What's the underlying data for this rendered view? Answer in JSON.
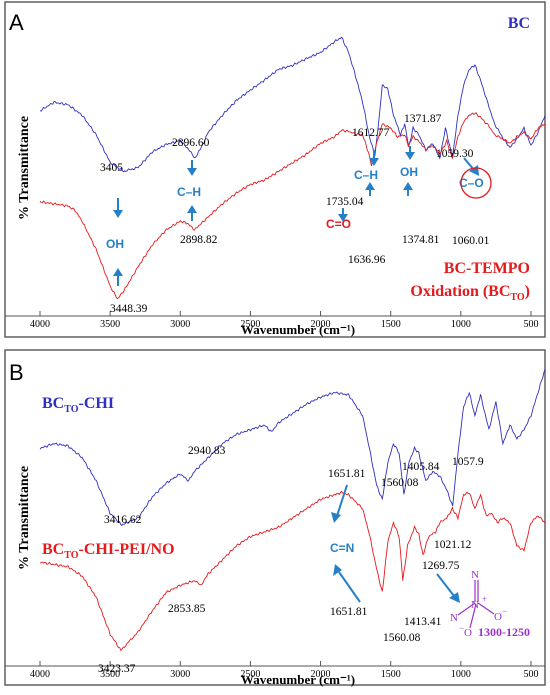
{
  "chart_data": [
    {
      "panel": "A",
      "type": "line",
      "xlabel": "Wavenumber (cm⁻¹)",
      "ylabel": "% Transmittance",
      "xlim": [
        4000,
        400
      ],
      "xticks": [
        4000,
        3500,
        3000,
        2500,
        2000,
        1500,
        1000,
        500
      ],
      "series": [
        {
          "name": "BC",
          "color": "#3030c0",
          "points": [
            [
              4000,
              0.58
            ],
            [
              3900,
              0.62
            ],
            [
              3800,
              0.608
            ],
            [
              3700,
              0.56
            ],
            [
              3600,
              0.47
            ],
            [
              3500,
              0.342
            ],
            [
              3405,
              0.3
            ],
            [
              3300,
              0.318
            ],
            [
              3200,
              0.39
            ],
            [
              3100,
              0.425
            ],
            [
              3000,
              0.442
            ],
            [
              2950,
              0.41
            ],
            [
              2896.6,
              0.362
            ],
            [
              2850,
              0.41
            ],
            [
              2800,
              0.482
            ],
            [
              2700,
              0.56
            ],
            [
              2600,
              0.628
            ],
            [
              2500,
              0.676
            ],
            [
              2400,
              0.722
            ],
            [
              2300,
              0.772
            ],
            [
              2200,
              0.79
            ],
            [
              2100,
              0.822
            ],
            [
              2000,
              0.85
            ],
            [
              1900,
              0.9
            ],
            [
              1850,
              0.92
            ],
            [
              1800,
              0.85
            ],
            [
              1750,
              0.74
            ],
            [
              1700,
              0.62
            ],
            [
              1650,
              0.455
            ],
            [
              1612.77,
              0.372
            ],
            [
              1580,
              0.56
            ],
            [
              1560,
              0.7
            ],
            [
              1520,
              0.68
            ],
            [
              1480,
              0.56
            ],
            [
              1430,
              0.47
            ],
            [
              1400,
              0.52
            ],
            [
              1371.87,
              0.412
            ],
            [
              1340,
              0.5
            ],
            [
              1300,
              0.47
            ],
            [
              1250,
              0.4
            ],
            [
              1200,
              0.43
            ],
            [
              1150,
              0.36
            ],
            [
              1110,
              0.5
            ],
            [
              1059.3,
              0.365
            ],
            [
              1020,
              0.56
            ],
            [
              980,
              0.7
            ],
            [
              940,
              0.772
            ],
            [
              900,
              0.792
            ],
            [
              860,
              0.722
            ],
            [
              800,
              0.6
            ],
            [
              760,
              0.52
            ],
            [
              700,
              0.455
            ],
            [
              650,
              0.41
            ],
            [
              600,
              0.45
            ],
            [
              550,
              0.5
            ],
            [
              500,
              0.42
            ],
            [
              450,
              0.48
            ],
            [
              400,
              0.56
            ]
          ]
        },
        {
          "name": "BC-TEMPO Oxidation (BC",
          "name_sub": "TO",
          "name_end": ")",
          "color": "#e41a1c",
          "points": [
            [
              4000,
              0.16
            ],
            [
              3900,
              0.15
            ],
            [
              3800,
              0.14
            ],
            [
              3750,
              0.12
            ],
            [
              3700,
              0.07
            ],
            [
              3600,
              -0.06
            ],
            [
              3500,
              -0.23
            ],
            [
              3448.39,
              -0.29
            ],
            [
              3400,
              -0.25
            ],
            [
              3300,
              -0.14
            ],
            [
              3200,
              -0.04
            ],
            [
              3100,
              0.03
            ],
            [
              3000,
              0.07
            ],
            [
              2950,
              0.06
            ],
            [
              2898.82,
              0.03
            ],
            [
              2850,
              0.06
            ],
            [
              2800,
              0.09
            ],
            [
              2700,
              0.15
            ],
            [
              2600,
              0.2
            ],
            [
              2500,
              0.24
            ],
            [
              2400,
              0.26
            ],
            [
              2300,
              0.3
            ],
            [
              2200,
              0.34
            ],
            [
              2100,
              0.38
            ],
            [
              2000,
              0.43
            ],
            [
              1900,
              0.46
            ],
            [
              1850,
              0.49
            ],
            [
              1800,
              0.485
            ],
            [
              1735.04,
              0.47
            ],
            [
              1700,
              0.47
            ],
            [
              1660,
              0.39
            ],
            [
              1636.96,
              0.33
            ],
            [
              1600,
              0.43
            ],
            [
              1560,
              0.52
            ],
            [
              1500,
              0.5
            ],
            [
              1450,
              0.46
            ],
            [
              1400,
              0.47
            ],
            [
              1374.81,
              0.42
            ],
            [
              1340,
              0.46
            ],
            [
              1300,
              0.44
            ],
            [
              1250,
              0.4
            ],
            [
              1200,
              0.42
            ],
            [
              1150,
              0.38
            ],
            [
              1100,
              0.44
            ],
            [
              1060.01,
              0.36
            ],
            [
              1020,
              0.46
            ],
            [
              980,
              0.53
            ],
            [
              940,
              0.56
            ],
            [
              900,
              0.57
            ],
            [
              860,
              0.55
            ],
            [
              800,
              0.51
            ],
            [
              760,
              0.47
            ],
            [
              700,
              0.45
            ],
            [
              650,
              0.43
            ],
            [
              600,
              0.46
            ],
            [
              550,
              0.48
            ],
            [
              500,
              0.45
            ],
            [
              450,
              0.5
            ],
            [
              400,
              0.52
            ]
          ]
        }
      ],
      "peak_labels": [
        "3405",
        "2896.60",
        "1612.77",
        "1371.87",
        "1059.30",
        "3448.39",
        "2898.82",
        "1735.04",
        "1636.96",
        "1374.81",
        "1060.01"
      ],
      "group_labels": [
        "OH",
        "C–H",
        "C–H",
        "OH",
        "C–O",
        "C=O"
      ]
    },
    {
      "panel": "B",
      "type": "line",
      "xlabel": "Wavenumber (cm⁻¹)",
      "ylabel": "% Transmittance",
      "xlim": [
        4000,
        400
      ],
      "xticks": [
        4000,
        3500,
        3000,
        2500,
        2000,
        1500,
        1000,
        500
      ],
      "series": [
        {
          "name": "BC",
          "name_sub": "TO",
          "name_end": "-CHI",
          "color": "#3030c0",
          "points": [
            [
              4000,
              0.62
            ],
            [
              3900,
              0.64
            ],
            [
              3800,
              0.63
            ],
            [
              3700,
              0.58
            ],
            [
              3600,
              0.48
            ],
            [
              3500,
              0.34
            ],
            [
              3416.62,
              0.29
            ],
            [
              3300,
              0.32
            ],
            [
              3200,
              0.41
            ],
            [
              3100,
              0.47
            ],
            [
              3000,
              0.51
            ],
            [
              2940.83,
              0.48
            ],
            [
              2900,
              0.52
            ],
            [
              2800,
              0.58
            ],
            [
              2700,
              0.64
            ],
            [
              2600,
              0.68
            ],
            [
              2500,
              0.7
            ],
            [
              2400,
              0.72
            ],
            [
              2350,
              0.69
            ],
            [
              2300,
              0.73
            ],
            [
              2200,
              0.77
            ],
            [
              2100,
              0.81
            ],
            [
              2000,
              0.84
            ],
            [
              1900,
              0.86
            ],
            [
              1800,
              0.85
            ],
            [
              1700,
              0.76
            ],
            [
              1651.81,
              0.62
            ],
            [
              1600,
              0.46
            ],
            [
              1560.08,
              0.4
            ],
            [
              1520,
              0.56
            ],
            [
              1480,
              0.64
            ],
            [
              1440,
              0.6
            ],
            [
              1405.84,
              0.42
            ],
            [
              1370,
              0.56
            ],
            [
              1330,
              0.62
            ],
            [
              1300,
              0.6
            ],
            [
              1250,
              0.48
            ],
            [
              1200,
              0.52
            ],
            [
              1150,
              0.5
            ],
            [
              1100,
              0.44
            ],
            [
              1057.9,
              0.37
            ],
            [
              1020,
              0.6
            ],
            [
              980,
              0.8
            ],
            [
              940,
              0.86
            ],
            [
              900,
              0.76
            ],
            [
              860,
              0.85
            ],
            [
              800,
              0.7
            ],
            [
              750,
              0.82
            ],
            [
              700,
              0.64
            ],
            [
              650,
              0.72
            ],
            [
              600,
              0.66
            ],
            [
              550,
              0.7
            ],
            [
              500,
              0.76
            ],
            [
              450,
              0.86
            ],
            [
              400,
              0.96
            ]
          ]
        },
        {
          "name": "BC",
          "name_sub": "TO",
          "name_end": "-CHI-PEI/NO",
          "color": "#e41a1c",
          "points": [
            [
              4000,
              0.13
            ],
            [
              3900,
              0.12
            ],
            [
              3800,
              0.11
            ],
            [
              3700,
              0.07
            ],
            [
              3600,
              -0.02
            ],
            [
              3500,
              -0.18
            ],
            [
              3423.37,
              -0.25
            ],
            [
              3300,
              -0.17
            ],
            [
              3200,
              -0.08
            ],
            [
              3100,
              0.0
            ],
            [
              3000,
              0.03
            ],
            [
              2900,
              0.05
            ],
            [
              2853.85,
              0.03
            ],
            [
              2800,
              0.08
            ],
            [
              2700,
              0.14
            ],
            [
              2600,
              0.2
            ],
            [
              2500,
              0.24
            ],
            [
              2400,
              0.26
            ],
            [
              2300,
              0.28
            ],
            [
              2200,
              0.32
            ],
            [
              2100,
              0.36
            ],
            [
              2000,
              0.4
            ],
            [
              1900,
              0.42
            ],
            [
              1850,
              0.43
            ],
            [
              1800,
              0.42
            ],
            [
              1700,
              0.36
            ],
            [
              1651.81,
              0.25
            ],
            [
              1600,
              0.1
            ],
            [
              1560.08,
              0.0
            ],
            [
              1520,
              0.22
            ],
            [
              1480,
              0.3
            ],
            [
              1440,
              0.24
            ],
            [
              1413.41,
              0.05
            ],
            [
              1380,
              0.2
            ],
            [
              1330,
              0.28
            ],
            [
              1300,
              0.25
            ],
            [
              1269.75,
              0.16
            ],
            [
              1230,
              0.24
            ],
            [
              1180,
              0.26
            ],
            [
              1150,
              0.3
            ],
            [
              1100,
              0.32
            ],
            [
              1060,
              0.36
            ],
            [
              1021.12,
              0.32
            ],
            [
              980,
              0.42
            ],
            [
              940,
              0.43
            ],
            [
              900,
              0.36
            ],
            [
              860,
              0.42
            ],
            [
              820,
              0.33
            ],
            [
              780,
              0.34
            ],
            [
              740,
              0.3
            ],
            [
              700,
              0.32
            ],
            [
              650,
              0.3
            ],
            [
              600,
              0.2
            ],
            [
              550,
              0.18
            ],
            [
              500,
              0.3
            ],
            [
              450,
              0.33
            ],
            [
              400,
              0.3
            ]
          ]
        }
      ],
      "peak_labels": [
        "3416.62",
        "2940.83",
        "1651.81",
        "1560.08",
        "1405.84",
        "1057.9",
        "3423.37",
        "2853.85",
        "1651.81",
        "1560.08",
        "1413.41",
        "1269.75",
        "1021.12"
      ],
      "group_labels": [
        "C=N"
      ],
      "inset": {
        "atoms": [
          "N",
          "N",
          "N",
          "O",
          "O"
        ],
        "charges": [
          "+",
          "−",
          "−"
        ],
        "range_label": "1300-1250",
        "color": "#9932cc"
      }
    }
  ],
  "panel_labels": [
    "A",
    "B"
  ],
  "colors": {
    "blue": "#3030c0",
    "red": "#e41a1c",
    "arrow": "#2580c8",
    "purple": "#9932cc"
  }
}
